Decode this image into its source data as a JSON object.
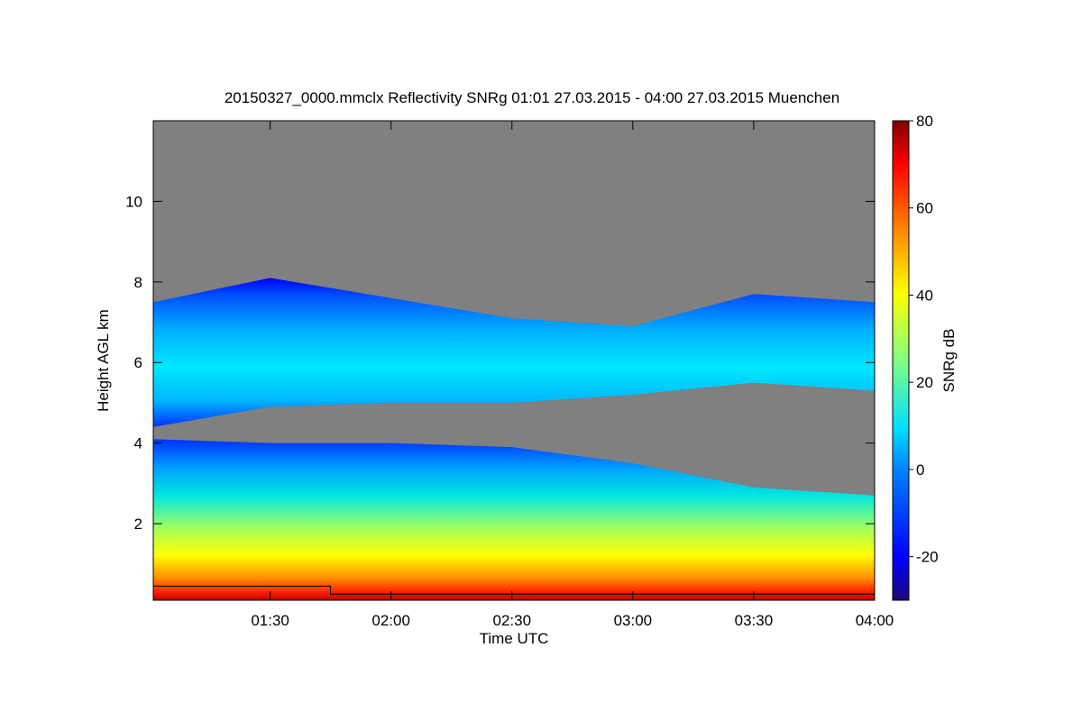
{
  "chart_data": {
    "type": "heatmap",
    "title": "20150327_0000.mmclx Reflectivity SNRg   01:01 27.03.2015 - 04:00 27.03.2015 Muenchen",
    "xlabel": "Time UTC",
    "ylabel": "Height AGL km",
    "colorbar_label": "SNRg dB",
    "x_range_hours": [
      1.0167,
      4.0
    ],
    "y_range_km": [
      0.1,
      12.0
    ],
    "x_ticks": [
      {
        "value": 1.5,
        "label": "01:30"
      },
      {
        "value": 2.0,
        "label": "02:00"
      },
      {
        "value": 2.5,
        "label": "02:30"
      },
      {
        "value": 3.0,
        "label": "03:00"
      },
      {
        "value": 3.5,
        "label": "03:30"
      },
      {
        "value": 4.0,
        "label": "04:00"
      }
    ],
    "y_ticks": [
      {
        "value": 2,
        "label": "2"
      },
      {
        "value": 4,
        "label": "4"
      },
      {
        "value": 6,
        "label": "6"
      },
      {
        "value": 8,
        "label": "8"
      },
      {
        "value": 10,
        "label": "10"
      }
    ],
    "colorbar_range": [
      -30,
      80
    ],
    "colorbar_ticks": [
      {
        "value": -20,
        "label": "-20"
      },
      {
        "value": 0,
        "label": "0"
      },
      {
        "value": 20,
        "label": "20"
      },
      {
        "value": 40,
        "label": "40"
      },
      {
        "value": 60,
        "label": "60"
      },
      {
        "value": 80,
        "label": "80"
      }
    ],
    "no_signal_color": "#808080",
    "colormap": [
      "#1a0a7a",
      "#0000ff",
      "#0080ff",
      "#00e0ff",
      "#80ff80",
      "#ffff00",
      "#ff8000",
      "#ff0000",
      "#800000"
    ],
    "upper_cloud_layer": {
      "time_hours": [
        1.0167,
        1.5,
        2.0,
        2.5,
        3.0,
        3.5,
        4.0
      ],
      "top_km": [
        7.5,
        8.1,
        7.6,
        7.1,
        6.9,
        7.7,
        7.5
      ],
      "base_km": [
        4.4,
        4.9,
        5.0,
        5.0,
        5.2,
        5.5,
        5.3
      ]
    },
    "lower_layer": {
      "time_hours": [
        1.0167,
        1.5,
        2.0,
        2.5,
        3.0,
        3.5,
        4.0
      ],
      "top_km": [
        4.1,
        4.0,
        4.0,
        3.9,
        3.5,
        2.9,
        2.7
      ]
    },
    "reference_line": {
      "time_hours": [
        1.0167,
        1.75,
        1.75,
        4.0
      ],
      "height_km": [
        0.45,
        0.45,
        0.25,
        0.25
      ]
    }
  }
}
